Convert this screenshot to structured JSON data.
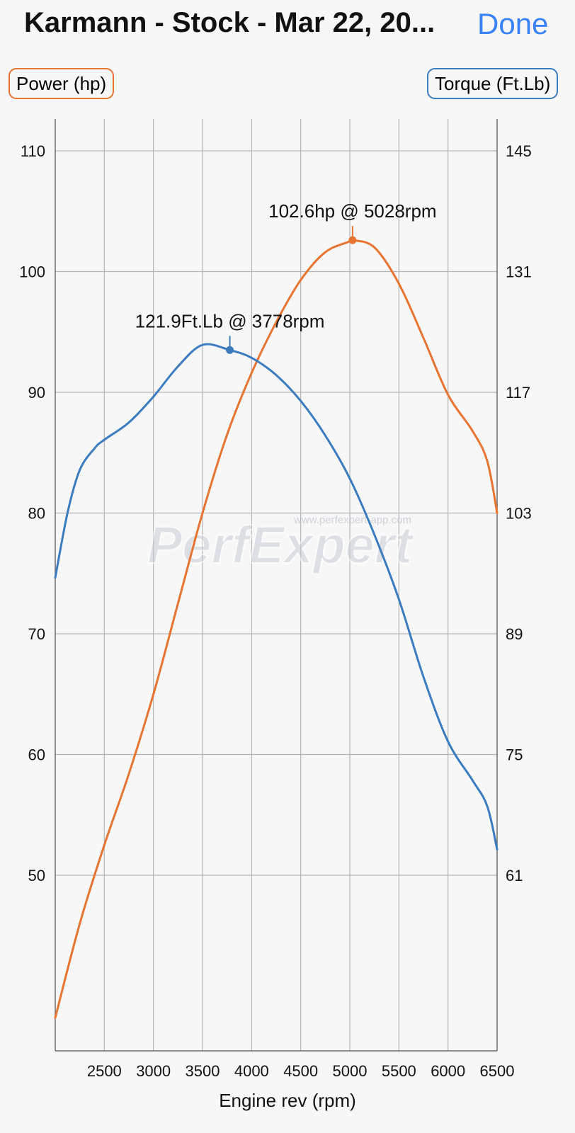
{
  "header": {
    "title": "Karmann - Stock - Mar 22, 20...",
    "done_label": "Done"
  },
  "legend": {
    "power_label": "Power (hp)",
    "torque_label": "Torque (Ft.Lb)"
  },
  "watermark": {
    "logo": "PerfExpert",
    "url": "www.perfexpert-app.com"
  },
  "chart_data": {
    "type": "line",
    "xlabel": "Engine rev (rpm)",
    "x_ticks": [
      2500,
      3000,
      3500,
      4000,
      4500,
      5000,
      5500,
      6000,
      6500
    ],
    "xlim": [
      2000,
      6500
    ],
    "y_left_ticks": [
      50,
      60,
      70,
      80,
      90,
      100,
      110
    ],
    "y_left_range": [
      38.2,
      110
    ],
    "y_right_ticks": [
      61,
      75,
      89,
      103,
      117,
      131,
      145
    ],
    "y_right_range": [
      44.5,
      145
    ],
    "grid": true,
    "series": [
      {
        "name": "Power (hp)",
        "axis": "left",
        "color": "#e87432",
        "x": [
          2000,
          2250,
          2500,
          2750,
          3000,
          3250,
          3500,
          3750,
          4000,
          4250,
          4500,
          4750,
          5000,
          5028,
          5250,
          5500,
          5750,
          6000,
          6250,
          6400,
          6500
        ],
        "y": [
          38.2,
          46.0,
          52.5,
          58.4,
          65.0,
          72.5,
          80.0,
          86.5,
          91.6,
          95.8,
          99.3,
          101.6,
          102.5,
          102.6,
          102.0,
          99.0,
          94.5,
          89.8,
          86.8,
          84.3,
          80.0
        ]
      },
      {
        "name": "Torque (Ft.Lb)",
        "axis": "right",
        "color": "#3b7bbf",
        "x": [
          2000,
          2125,
          2250,
          2400,
          2500,
          2750,
          3000,
          3250,
          3500,
          3778,
          4000,
          4250,
          4500,
          4750,
          5000,
          5250,
          5500,
          5750,
          6000,
          6250,
          6400,
          6500
        ],
        "y": [
          95.5,
          103.0,
          108.0,
          110.5,
          111.5,
          113.5,
          116.5,
          120.0,
          122.5,
          121.9,
          121.0,
          119.0,
          116.0,
          112.0,
          107.0,
          100.5,
          93.0,
          84.0,
          76.5,
          72.0,
          69.0,
          64.0
        ]
      }
    ],
    "annotations": [
      {
        "series": "Power (hp)",
        "x": 5028,
        "y": 102.6,
        "text": "102.6hp @ 5028rpm"
      },
      {
        "series": "Torque (Ft.Lb)",
        "x": 3778,
        "y": 121.9,
        "text": "121.9Ft.Lb @ 3778rpm"
      }
    ]
  }
}
